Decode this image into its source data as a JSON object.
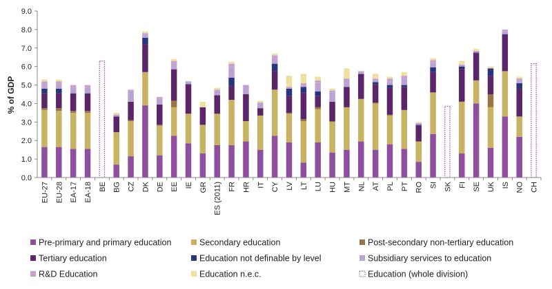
{
  "chart_data": {
    "type": "bar",
    "stacked": true,
    "title": "",
    "ylabel": "% of GDP",
    "xlabel": "",
    "ylim": [
      0,
      9
    ],
    "yticks": [
      "0.0",
      "1.0",
      "2.0",
      "3.0",
      "4.0",
      "5.0",
      "6.0",
      "7.0",
      "8.0",
      "9.0"
    ],
    "grid": false,
    "legend_position": "bottom",
    "categories": [
      "EU-27",
      "EU-28",
      "EA-17",
      "EA-18",
      "BE",
      "BG",
      "CZ",
      "DK",
      "DE",
      "EE",
      "IE",
      "GR",
      "ES (2011)",
      "FR",
      "HR",
      "IT",
      "CY",
      "LV",
      "LT",
      "LU",
      "HU",
      "MT",
      "NL",
      "AT",
      "PL",
      "PT",
      "RO",
      "SI",
      "SK",
      "FI",
      "SE",
      "UK",
      "IS",
      "NO",
      "CH"
    ],
    "series": [
      {
        "name": "Pre-primary and primary education",
        "color": "#8e4f9e",
        "style": "solid",
        "values": [
          1.65,
          1.65,
          1.55,
          1.55,
          0,
          0.7,
          1.15,
          3.9,
          1.2,
          2.25,
          1.85,
          1.3,
          1.75,
          1.75,
          1.95,
          1.5,
          2.25,
          1.9,
          0.8,
          1.9,
          1.35,
          1.5,
          1.95,
          1.5,
          1.8,
          1.55,
          0.85,
          2.35,
          0,
          1.3,
          4.0,
          1.6,
          3.3,
          2.2,
          0
        ]
      },
      {
        "name": "Secondary education",
        "color": "#c8b264",
        "style": "solid",
        "values": [
          2.0,
          1.95,
          1.95,
          1.95,
          0,
          1.75,
          1.9,
          1.8,
          1.6,
          1.55,
          1.6,
          1.55,
          1.7,
          2.45,
          1.1,
          1.85,
          2.5,
          1.55,
          2.25,
          1.8,
          1.65,
          2.3,
          2.3,
          2.5,
          1.55,
          2.1,
          1.1,
          2.25,
          0,
          2.8,
          1.25,
          2.2,
          2.45,
          1.1,
          0
        ]
      },
      {
        "name": "Post-secondary non-tertiary education",
        "color": "#9a7444",
        "style": "solid",
        "values": [
          0.1,
          0.15,
          0.1,
          0.1,
          0,
          0,
          0.05,
          0,
          0.05,
          0.35,
          0,
          0,
          0,
          0,
          0,
          0,
          0,
          0.05,
          0.1,
          0.1,
          0.05,
          0,
          0,
          0.05,
          0.05,
          0,
          0,
          0,
          0,
          0,
          0,
          0.7,
          0,
          0,
          0
        ]
      },
      {
        "name": "Tertiary education",
        "color": "#5b2568",
        "style": "solid",
        "values": [
          0.8,
          0.8,
          0.9,
          0.9,
          0,
          0.85,
          1.0,
          1.5,
          1.1,
          1.7,
          1.55,
          0.95,
          1.0,
          0.75,
          1.45,
          0.4,
          1.0,
          0.9,
          1.45,
          0.6,
          1.05,
          1.1,
          1.35,
          1.0,
          1.45,
          1.25,
          0.85,
          1.1,
          0,
          1.75,
          1.45,
          1.0,
          1.95,
          1.5,
          0
        ]
      },
      {
        "name": "Education not definable by level",
        "color": "#27357c",
        "style": "solid",
        "values": [
          0.25,
          0.25,
          0.05,
          0.05,
          0,
          0,
          0,
          0.35,
          0,
          0,
          0.05,
          0,
          0,
          0.45,
          0,
          0,
          0.4,
          0.4,
          0.3,
          0.25,
          0,
          0,
          0,
          0.1,
          0.15,
          0.1,
          0.05,
          0.25,
          0,
          0.15,
          0.05,
          0.4,
          0.05,
          0.3,
          0
        ]
      },
      {
        "name": "Subsidiary services to education",
        "color": "#bba4d3",
        "style": "solid",
        "values": [
          0.25,
          0.25,
          0.3,
          0.3,
          0,
          0.1,
          0.6,
          0.15,
          0.3,
          0.3,
          0.15,
          0,
          0.2,
          0.6,
          0.5,
          0.3,
          0.3,
          0.1,
          0,
          0.45,
          0.5,
          0.45,
          0,
          0.2,
          0.2,
          0.35,
          0,
          0.25,
          0,
          0.1,
          0,
          0,
          0.15,
          0.1,
          0
        ]
      },
      {
        "name": "R&D Education",
        "color": "#c9a2cc",
        "style": "solid",
        "values": [
          0.15,
          0.15,
          0.15,
          0.15,
          0,
          0,
          0.05,
          0.1,
          0.1,
          0.15,
          0,
          0,
          0.1,
          0.15,
          0,
          0,
          0.15,
          0,
          0.2,
          0.15,
          0.1,
          0,
          0.15,
          0,
          0.15,
          0.15,
          0.1,
          0.15,
          0,
          0,
          0.1,
          0,
          0.1,
          0.15,
          0
        ]
      },
      {
        "name": "Education n.e.c.",
        "color": "#f0e0a0",
        "style": "solid",
        "values": [
          0.1,
          0.1,
          0,
          0,
          0,
          0.1,
          0,
          0.1,
          0,
          0.1,
          0,
          0.3,
          0.1,
          0.1,
          0,
          0.1,
          0.1,
          0.6,
          0.5,
          0.2,
          0.1,
          0.55,
          0,
          0.25,
          0.1,
          0.2,
          0.05,
          0.1,
          0,
          0.2,
          0.1,
          0.1,
          0,
          0.1,
          0
        ]
      },
      {
        "name": "Education (whole division)",
        "color": "#a24aa0",
        "style": "dotted-outline",
        "values": [
          0,
          0,
          0,
          0,
          6.3,
          0,
          0,
          0,
          0,
          0,
          0,
          0,
          0,
          0,
          0,
          0,
          0,
          0,
          0,
          0,
          0,
          0,
          0,
          0,
          0,
          0,
          0,
          0,
          3.85,
          0,
          0,
          0,
          0,
          0,
          6.15
        ]
      }
    ]
  }
}
